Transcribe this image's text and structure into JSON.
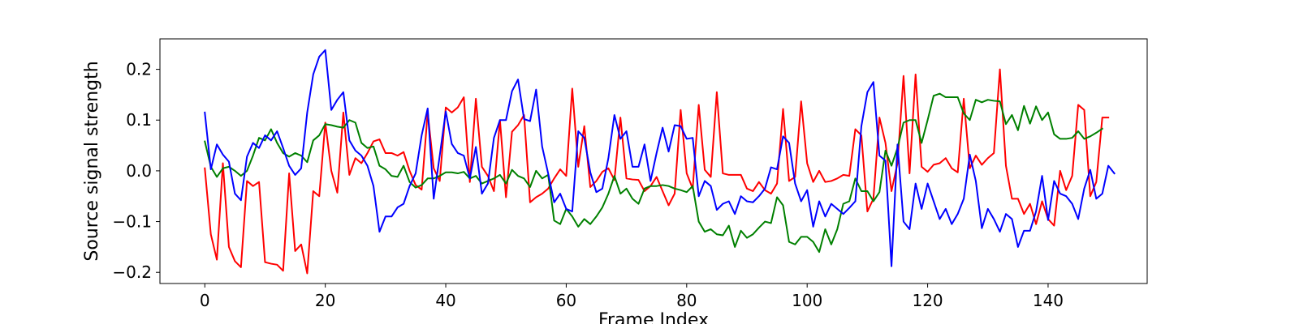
{
  "chart_data": {
    "type": "line",
    "title": "",
    "xlabel": "Frame Index",
    "ylabel": "Source signal strength",
    "xlim": [
      -7.45,
      156.45
    ],
    "ylim": [
      -0.222,
      0.26
    ],
    "xticks": [
      0,
      20,
      40,
      60,
      80,
      100,
      120,
      140
    ],
    "yticks": [
      -0.2,
      -0.1,
      0.0,
      0.1,
      0.2
    ],
    "ytick_labels": [
      "−0.2",
      "−0.1",
      "0.0",
      "0.1",
      "0.2"
    ],
    "grid": false,
    "legend": "none",
    "series": [
      {
        "color": "#ff0000",
        "x_start": 0,
        "values": [
          0.005,
          -0.125,
          -0.175,
          0.015,
          -0.15,
          -0.178,
          -0.19,
          -0.02,
          -0.03,
          -0.022,
          -0.18,
          -0.183,
          -0.185,
          -0.197,
          -0.005,
          -0.158,
          -0.145,
          -0.202,
          -0.04,
          -0.05,
          0.095,
          0.0,
          -0.043,
          0.115,
          -0.008,
          0.025,
          0.015,
          0.035,
          0.058,
          0.062,
          0.035,
          0.035,
          0.03,
          0.037,
          0.0,
          -0.028,
          -0.037,
          0.115,
          0.005,
          -0.02,
          0.125,
          0.115,
          0.125,
          0.145,
          -0.022,
          0.142,
          0.008,
          -0.01,
          -0.04,
          0.1,
          -0.052,
          0.077,
          0.09,
          0.11,
          -0.062,
          -0.052,
          -0.045,
          -0.035,
          -0.015,
          0.003,
          -0.01,
          0.162,
          0.008,
          0.088,
          -0.032,
          -0.02,
          -0.002,
          0.005,
          -0.018,
          0.105,
          -0.015,
          -0.017,
          -0.018,
          -0.04,
          -0.03,
          -0.012,
          -0.04,
          -0.068,
          -0.045,
          0.12,
          -0.005,
          -0.035,
          0.13,
          0.002,
          -0.012,
          0.155,
          -0.005,
          -0.008,
          -0.008,
          -0.008,
          -0.035,
          -0.04,
          -0.022,
          -0.038,
          -0.045,
          -0.025,
          0.122,
          -0.02,
          -0.012,
          0.137,
          0.015,
          -0.022,
          0.0,
          -0.022,
          -0.02,
          -0.015,
          -0.008,
          -0.01,
          0.082,
          0.07,
          -0.08,
          -0.055,
          0.105,
          0.055,
          -0.04,
          0.015,
          0.187,
          -0.005,
          0.19,
          0.008,
          -0.002,
          0.012,
          0.015,
          0.025,
          0.005,
          -0.003,
          0.142,
          0.005,
          0.03,
          0.012,
          0.025,
          0.035,
          0.2,
          0.01,
          -0.055,
          -0.055,
          -0.085,
          -0.065,
          -0.105,
          -0.06,
          -0.095,
          -0.108,
          0.0,
          -0.038,
          -0.01,
          0.13,
          0.12,
          -0.05,
          -0.022,
          0.105,
          0.105
        ]
      },
      {
        "color": "#008000",
        "x_start": 0,
        "values": [
          0.058,
          0.008,
          -0.012,
          0.005,
          0.008,
          0.0,
          -0.01,
          0.0,
          0.03,
          0.065,
          0.06,
          0.082,
          0.055,
          0.035,
          0.028,
          0.035,
          0.03,
          0.017,
          0.06,
          0.07,
          0.092,
          0.09,
          0.087,
          0.085,
          0.1,
          0.095,
          0.055,
          0.045,
          0.048,
          0.01,
          0.003,
          -0.01,
          -0.012,
          0.01,
          -0.022,
          -0.033,
          -0.028,
          -0.015,
          -0.015,
          -0.01,
          -0.003,
          -0.003,
          -0.005,
          -0.002,
          -0.015,
          -0.01,
          -0.025,
          -0.02,
          -0.015,
          -0.008,
          -0.025,
          0.002,
          -0.01,
          -0.015,
          -0.032,
          0.0,
          -0.015,
          -0.008,
          -0.098,
          -0.105,
          -0.075,
          -0.09,
          -0.11,
          -0.095,
          -0.105,
          -0.09,
          -0.072,
          -0.045,
          -0.01,
          -0.045,
          -0.035,
          -0.055,
          -0.065,
          -0.035,
          -0.03,
          -0.03,
          -0.028,
          -0.03,
          -0.035,
          -0.038,
          -0.042,
          -0.03,
          -0.1,
          -0.12,
          -0.115,
          -0.125,
          -0.127,
          -0.108,
          -0.15,
          -0.118,
          -0.132,
          -0.125,
          -0.112,
          -0.1,
          -0.103,
          -0.052,
          -0.068,
          -0.14,
          -0.145,
          -0.13,
          -0.13,
          -0.14,
          -0.16,
          -0.115,
          -0.145,
          -0.115,
          -0.065,
          -0.06,
          -0.015,
          -0.04,
          -0.04,
          -0.06,
          -0.042,
          0.04,
          0.01,
          0.045,
          0.095,
          0.1,
          0.1,
          0.055,
          0.1,
          0.148,
          0.152,
          0.145,
          0.145,
          0.145,
          0.113,
          0.1,
          0.14,
          0.135,
          0.14,
          0.138,
          0.137,
          0.092,
          0.11,
          0.08,
          0.128,
          0.093,
          0.127,
          0.1,
          0.115,
          0.072,
          0.063,
          0.063,
          0.065,
          0.078,
          0.063,
          0.068,
          0.075,
          0.083
        ]
      },
      {
        "color": "#0000ff",
        "x_start": 0,
        "values": [
          0.115,
          0.003,
          0.052,
          0.032,
          0.018,
          -0.045,
          -0.058,
          0.028,
          0.055,
          0.045,
          0.07,
          0.06,
          0.078,
          0.045,
          0.01,
          -0.008,
          0.005,
          0.115,
          0.19,
          0.225,
          0.238,
          0.12,
          0.14,
          0.155,
          0.06,
          0.04,
          0.03,
          0.01,
          -0.03,
          -0.12,
          -0.09,
          -0.09,
          -0.072,
          -0.065,
          -0.03,
          -0.005,
          0.07,
          0.123,
          -0.055,
          0.03,
          0.117,
          0.053,
          0.035,
          0.03,
          -0.015,
          0.047,
          -0.045,
          -0.025,
          0.065,
          0.1,
          0.1,
          0.157,
          0.18,
          0.102,
          0.098,
          0.16,
          0.048,
          -0.005,
          -0.062,
          -0.045,
          -0.075,
          -0.08,
          0.078,
          0.065,
          -0.003,
          -0.042,
          -0.035,
          0.025,
          0.11,
          0.063,
          0.078,
          0.008,
          0.008,
          0.052,
          -0.02,
          0.035,
          0.085,
          0.038,
          0.09,
          0.088,
          0.063,
          0.065,
          -0.05,
          -0.02,
          -0.03,
          -0.077,
          -0.065,
          -0.06,
          -0.085,
          -0.05,
          -0.06,
          -0.062,
          -0.05,
          -0.035,
          0.007,
          0.003,
          0.068,
          0.055,
          -0.025,
          -0.06,
          -0.038,
          -0.11,
          -0.06,
          -0.09,
          -0.065,
          -0.075,
          -0.085,
          -0.073,
          -0.06,
          0.088,
          0.155,
          0.175,
          0.03,
          0.02,
          -0.188,
          0.052,
          -0.1,
          -0.115,
          -0.025,
          -0.075,
          -0.025,
          -0.06,
          -0.095,
          -0.075,
          -0.105,
          -0.085,
          -0.055,
          0.032,
          -0.02,
          -0.113,
          -0.075,
          -0.095,
          -0.12,
          -0.085,
          -0.095,
          -0.15,
          -0.118,
          -0.118,
          -0.08,
          -0.01,
          -0.097,
          -0.02,
          -0.045,
          -0.05,
          -0.065,
          -0.095,
          -0.035,
          0.002,
          -0.055,
          -0.045,
          0.01,
          -0.005
        ]
      }
    ]
  }
}
